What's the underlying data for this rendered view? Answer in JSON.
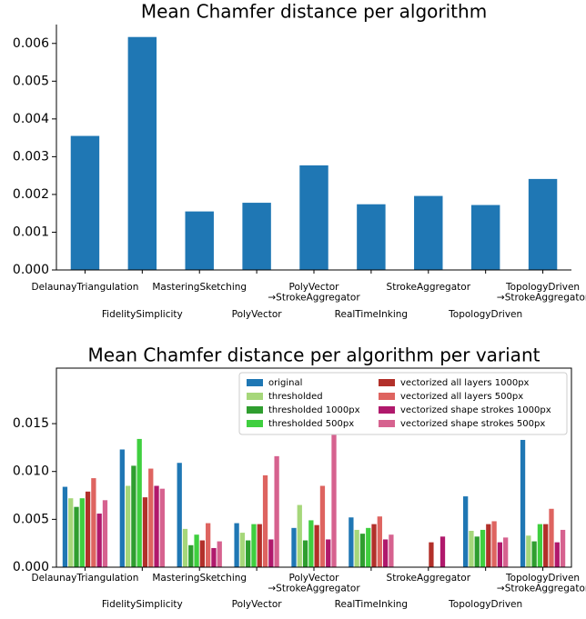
{
  "chart_data": [
    {
      "type": "bar",
      "title": "Mean Chamfer distance per algorithm",
      "categories": [
        "DelaunayTriangulation",
        "FidelitySimplicity",
        "MasteringSketching",
        "PolyVector",
        "PolyVector\n→StrokeAggregator",
        "RealTimeInking",
        "StrokeAggregator",
        "TopologyDriven",
        "TopologyDriven\n→StrokeAggregator"
      ],
      "values": [
        0.00355,
        0.00617,
        0.00155,
        0.00178,
        0.00277,
        0.00174,
        0.00196,
        0.00172,
        0.00241
      ],
      "color": "#1f77b4",
      "frame": false,
      "ylim": [
        0,
        0.0065
      ],
      "yticks": [
        {
          "value": 0,
          "label": "0.000"
        },
        {
          "value": 0.001,
          "label": "0.001"
        },
        {
          "value": 0.002,
          "label": "0.002"
        },
        {
          "value": 0.003,
          "label": "0.003"
        },
        {
          "value": 0.004,
          "label": "0.004"
        },
        {
          "value": 0.005,
          "label": "0.005"
        },
        {
          "value": 0.006,
          "label": "0.006"
        }
      ]
    },
    {
      "type": "grouped_bar",
      "title": "Mean Chamfer distance per algorithm per variant",
      "categories": [
        "DelaunayTriangulation",
        "FidelitySimplicity",
        "MasteringSketching",
        "PolyVector",
        "PolyVector\n→StrokeAggregator",
        "RealTimeInking",
        "StrokeAggregator",
        "TopologyDriven",
        "TopologyDriven\n→StrokeAggregator"
      ],
      "series": [
        {
          "name": "original",
          "color": "#1f77b4",
          "values": [
            0.0084,
            0.0123,
            0.0109,
            0.0046,
            0.0041,
            0.0052,
            null,
            0.0074,
            0.0133
          ]
        },
        {
          "name": "thresholded",
          "color": "#a6d77a",
          "values": [
            0.0072,
            0.0085,
            0.004,
            0.0036,
            0.0065,
            0.0039,
            null,
            0.0038,
            0.0033
          ]
        },
        {
          "name": "thresholded 1000px",
          "color": "#2f9e2f",
          "values": [
            0.0063,
            0.0106,
            0.0023,
            0.0028,
            0.0028,
            0.0035,
            null,
            0.0032,
            0.0027
          ]
        },
        {
          "name": "thresholded 500px",
          "color": "#3fcf3f",
          "values": [
            0.0072,
            0.0134,
            0.0034,
            0.0045,
            0.0049,
            0.0041,
            null,
            0.0039,
            0.0045
          ]
        },
        {
          "name": "vectorized all layers 1000px",
          "color": "#b2302a",
          "values": [
            0.0079,
            0.0073,
            0.0028,
            0.0045,
            0.0044,
            0.0045,
            0.0026,
            0.0045,
            0.0045
          ]
        },
        {
          "name": "vectorized all layers 500px",
          "color": "#de6460",
          "values": [
            0.0093,
            0.0103,
            0.0046,
            0.0096,
            0.0085,
            0.0053,
            null,
            0.0048,
            0.0061
          ]
        },
        {
          "name": "vectorized shape strokes 1000px",
          "color": "#b0196c",
          "values": [
            0.0056,
            0.0085,
            0.002,
            0.0029,
            0.0029,
            0.0029,
            0.0032,
            0.0026,
            0.0026
          ]
        },
        {
          "name": "vectorized shape strokes 500px",
          "color": "#d6628f",
          "values": [
            0.007,
            0.0082,
            0.0027,
            0.0116,
            0.0139,
            0.0034,
            null,
            0.0031,
            0.0039
          ]
        }
      ],
      "frame": true,
      "legend": "upper right",
      "ylim": [
        0,
        0.0208
      ],
      "yticks": [
        {
          "value": 0,
          "label": "0.000"
        },
        {
          "value": 0.005,
          "label": "0.005"
        },
        {
          "value": 0.01,
          "label": "0.010"
        },
        {
          "value": 0.015,
          "label": "0.015"
        }
      ]
    }
  ]
}
